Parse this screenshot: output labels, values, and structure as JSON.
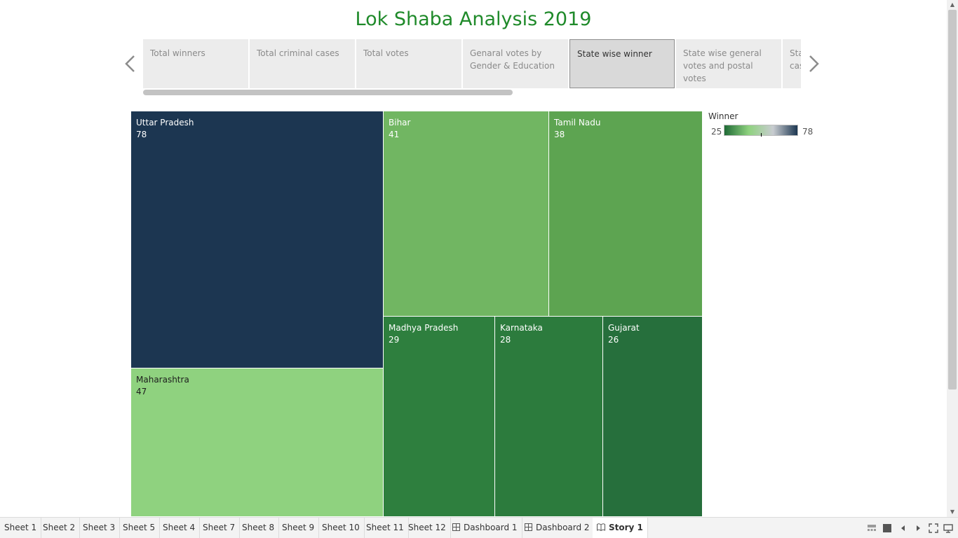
{
  "story": {
    "title": "Lok Shaba Analysis 2019",
    "title_color": "#1f8a2a",
    "points": [
      {
        "label": "Total winners",
        "active": false
      },
      {
        "label": "Total criminal cases",
        "active": false
      },
      {
        "label": "Total votes",
        "active": false
      },
      {
        "label": "Genaral votes by Gender & Education",
        "active": false
      },
      {
        "label": "State wise winner",
        "active": true
      },
      {
        "label": "State wise general votes and postal votes",
        "active": false
      },
      {
        "label": "State wise criminal cases",
        "active": false
      }
    ],
    "prev_icon": "chevron-left-icon",
    "next_icon": "chevron-right-icon"
  },
  "chart_data": {
    "type": "treemap",
    "measure": "Winner",
    "items": [
      {
        "state": "Uttar Pradesh",
        "value": 78,
        "color": "#1c3651",
        "text": "#ffffff"
      },
      {
        "state": "Maharashtra",
        "value": 47,
        "color": "#8fd27f",
        "text": "#1d1d1d"
      },
      {
        "state": "Bihar",
        "value": 41,
        "color": "#71b662",
        "text": "#ffffff"
      },
      {
        "state": "Tamil Nadu",
        "value": 38,
        "color": "#5da451",
        "text": "#ffffff"
      },
      {
        "state": "Madhya Pradesh",
        "value": 29,
        "color": "#2e7f3e",
        "text": "#ffffff"
      },
      {
        "state": "Karnataka",
        "value": 28,
        "color": "#2c7b3d",
        "text": "#ffffff"
      },
      {
        "state": "Gujarat",
        "value": 26,
        "color": "#266f3c",
        "text": "#ffffff"
      }
    ],
    "legend": {
      "title": "Winner",
      "min": 25,
      "max": 78,
      "gradient": [
        "#1f6b36",
        "#8fd27f",
        "#c8ccd0",
        "#1c3651"
      ]
    }
  },
  "sheet_tabs": [
    {
      "label": "Sheet 1",
      "type": "sheet"
    },
    {
      "label": "Sheet 2",
      "type": "sheet"
    },
    {
      "label": "Sheet 3",
      "type": "sheet"
    },
    {
      "label": "Sheet 5",
      "type": "sheet"
    },
    {
      "label": "Sheet 4",
      "type": "sheet"
    },
    {
      "label": "Sheet 7",
      "type": "sheet"
    },
    {
      "label": "Sheet 8",
      "type": "sheet"
    },
    {
      "label": "Sheet 9",
      "type": "sheet"
    },
    {
      "label": "Sheet 10",
      "type": "sheet"
    },
    {
      "label": "Sheet 11",
      "type": "sheet"
    },
    {
      "label": "Sheet 12",
      "type": "sheet"
    },
    {
      "label": "Dashboard 1",
      "type": "dashboard"
    },
    {
      "label": "Dashboard 2",
      "type": "dashboard"
    },
    {
      "label": "Story 1",
      "type": "story",
      "active": true
    }
  ],
  "bottom_controls": [
    "show-filmstrip-icon",
    "show-tabs-icon",
    "previous-sheet-icon",
    "next-sheet-icon",
    "fullscreen-icon",
    "presentation-mode-icon"
  ]
}
